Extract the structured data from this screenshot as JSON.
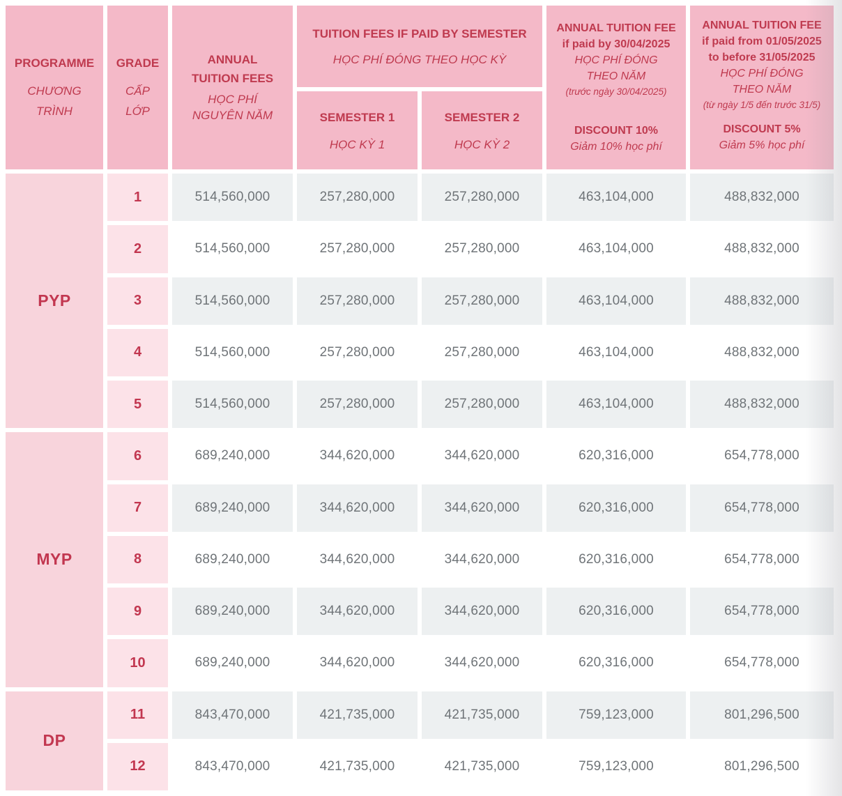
{
  "colors": {
    "header_pink": "#f4b9c8",
    "programme_pink": "#f8d4dc",
    "grade_pink": "#fce2e8",
    "heading_red": "#bf3a4f",
    "row_gray": "#edf0f1",
    "row_white": "#ffffff",
    "number_gray": "#6f7478"
  },
  "header": {
    "programme": {
      "en": "PROGRAMME",
      "vi_lines": [
        "CHƯƠNG",
        "TRÌNH"
      ]
    },
    "grade": {
      "en": "GRADE",
      "vi_lines": [
        "CẤP",
        "LỚP"
      ]
    },
    "annual": {
      "en_lines": [
        "ANNUAL",
        "TUITION FEES"
      ],
      "vi_lines": [
        "HỌC PHÍ",
        "NGUYÊN NĂM"
      ]
    },
    "semester_group": {
      "en": "TUITION FEES IF PAID BY SEMESTER",
      "vi": "HỌC PHÍ ĐÓNG THEO HỌC KỲ"
    },
    "semester1": {
      "en": "SEMESTER 1",
      "vi": "HỌC KỲ 1"
    },
    "semester2": {
      "en": "SEMESTER 2",
      "vi": "HỌC KỲ 2"
    },
    "annual_discount10": {
      "en_lines": [
        "ANNUAL TUITION FEE",
        "if paid by 30/04/2025"
      ],
      "vi_lines": [
        "HỌC PHÍ ĐÓNG",
        "THEO NĂM"
      ],
      "note": "(trước ngày 30/04/2025)",
      "discount_en": "DISCOUNT 10%",
      "discount_vi": "Giảm 10% học phí"
    },
    "annual_discount5": {
      "en_lines": [
        "ANNUAL TUITION FEE",
        "if paid from 01/05/2025",
        "to before 31/05/2025"
      ],
      "vi_lines": [
        "HỌC PHÍ ĐÓNG",
        "THEO NĂM"
      ],
      "note": "(từ ngày 1/5 đến trước 31/5)",
      "discount_en": "DISCOUNT 5%",
      "discount_vi": "Giảm 5% học phí"
    }
  },
  "programmes": [
    {
      "label": "PYP"
    },
    {
      "label": "MYP"
    },
    {
      "label": "DP"
    }
  ],
  "rows": [
    {
      "grade": "1",
      "annual": "514,560,000",
      "semester1": "257,280,000",
      "semester2": "257,280,000",
      "discount10": "463,104,000",
      "discount5": "488,832,000"
    },
    {
      "grade": "2",
      "annual": "514,560,000",
      "semester1": "257,280,000",
      "semester2": "257,280,000",
      "discount10": "463,104,000",
      "discount5": "488,832,000"
    },
    {
      "grade": "3",
      "annual": "514,560,000",
      "semester1": "257,280,000",
      "semester2": "257,280,000",
      "discount10": "463,104,000",
      "discount5": "488,832,000"
    },
    {
      "grade": "4",
      "annual": "514,560,000",
      "semester1": "257,280,000",
      "semester2": "257,280,000",
      "discount10": "463,104,000",
      "discount5": "488,832,000"
    },
    {
      "grade": "5",
      "annual": "514,560,000",
      "semester1": "257,280,000",
      "semester2": "257,280,000",
      "discount10": "463,104,000",
      "discount5": "488,832,000"
    },
    {
      "grade": "6",
      "annual": "689,240,000",
      "semester1": "344,620,000",
      "semester2": "344,620,000",
      "discount10": "620,316,000",
      "discount5": "654,778,000"
    },
    {
      "grade": "7",
      "annual": "689,240,000",
      "semester1": "344,620,000",
      "semester2": "344,620,000",
      "discount10": "620,316,000",
      "discount5": "654,778,000"
    },
    {
      "grade": "8",
      "annual": "689,240,000",
      "semester1": "344,620,000",
      "semester2": "344,620,000",
      "discount10": "620,316,000",
      "discount5": "654,778,000"
    },
    {
      "grade": "9",
      "annual": "689,240,000",
      "semester1": "344,620,000",
      "semester2": "344,620,000",
      "discount10": "620,316,000",
      "discount5": "654,778,000"
    },
    {
      "grade": "10",
      "annual": "689,240,000",
      "semester1": "344,620,000",
      "semester2": "344,620,000",
      "discount10": "620,316,000",
      "discount5": "654,778,000"
    },
    {
      "grade": "11",
      "annual": "843,470,000",
      "semester1": "421,735,000",
      "semester2": "421,735,000",
      "discount10": "759,123,000",
      "discount5": "801,296,500"
    },
    {
      "grade": "12",
      "annual": "843,470,000",
      "semester1": "421,735,000",
      "semester2": "421,735,000",
      "discount10": "759,123,000",
      "discount5": "801,296,500"
    }
  ]
}
